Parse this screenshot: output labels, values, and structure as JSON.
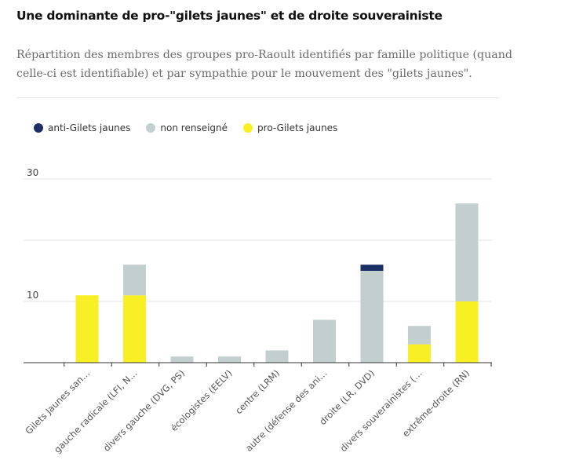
{
  "header": {
    "title": "Une dominante de pro-\"gilets jaunes\" et de droite souverainiste",
    "subtitle": "Répartition des membres des groupes pro-Raoult identifiés par famille politique (quand celle-ci est identifiable) et par sympathie pour le mouvement des \"gilets jaunes\"."
  },
  "colors": {
    "anti": "#1b2f66",
    "non": "#c3cece",
    "pro": "#f8ef24"
  },
  "chart_data": {
    "type": "bar",
    "stacked": true,
    "categories": [
      "Gilets Jaunes san…",
      "gauche radicale (LFI, N…",
      "divers gauche (DVG, PS)",
      "écologistes (EELV)",
      "centre (LRM)",
      "autre (défense des ani…",
      "droite (LR, DVD)",
      "divers souverainistes (…",
      "extrême-droite (RN)"
    ],
    "series": [
      {
        "name": "pro-Gilets jaunes",
        "values": [
          11,
          11,
          0,
          0,
          0,
          0,
          0,
          3,
          10
        ]
      },
      {
        "name": "non renseigné",
        "values": [
          0,
          5,
          1,
          1,
          2,
          7,
          15,
          3,
          16
        ]
      },
      {
        "name": "anti-Gilets jaunes",
        "values": [
          0,
          0,
          0,
          0,
          0,
          0,
          1,
          0,
          0
        ]
      }
    ],
    "legend": [
      "anti-Gilets jaunes",
      "non renseigné",
      "pro-Gilets jaunes"
    ],
    "y_ticks": [
      10,
      30
    ],
    "ylim": [
      0,
      30
    ],
    "grid": true,
    "legend_position": "top-left"
  }
}
